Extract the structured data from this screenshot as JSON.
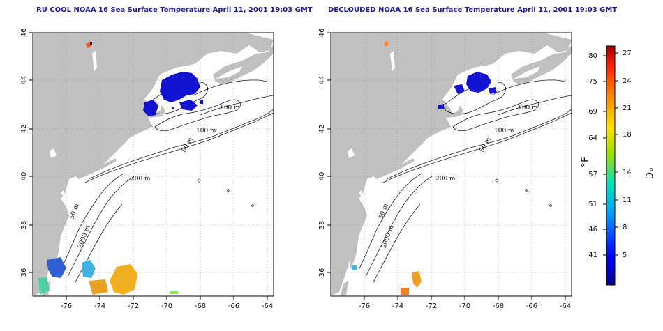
{
  "titles": {
    "left": "RU COOL NOAA 16 Sea Surface Temperature April 11, 2001 19:03 GMT",
    "right": "DECLOUDED NOAA 16 Sea Surface Temperature April 11, 2001 19:03 GMT"
  },
  "axes": {
    "lon_ticks": [
      "-76",
      "-74",
      "-72",
      "-70",
      "-68",
      "-66",
      "-64"
    ],
    "lat_ticks": [
      "46",
      "44",
      "42",
      "40",
      "38",
      "36"
    ]
  },
  "contour_labels": [
    "100 m",
    "100 m",
    "50 m",
    "200 m",
    "50 m",
    "2000 m"
  ],
  "colorbar": {
    "fahrenheit_unit": "°F",
    "celsius_unit": "°C",
    "fahrenheit_ticks": [
      "80",
      "75",
      "69",
      "64",
      "57",
      "51",
      "46",
      "41"
    ],
    "celsius_ticks": [
      "27",
      "24",
      "21",
      "18",
      "14",
      "11",
      "8",
      "5"
    ]
  },
  "colors": {
    "land": "#c0c0c0",
    "sea": "#ffffff",
    "title": "#1d1d9a",
    "cold": "#1414d0",
    "warm": "#f0b020"
  }
}
